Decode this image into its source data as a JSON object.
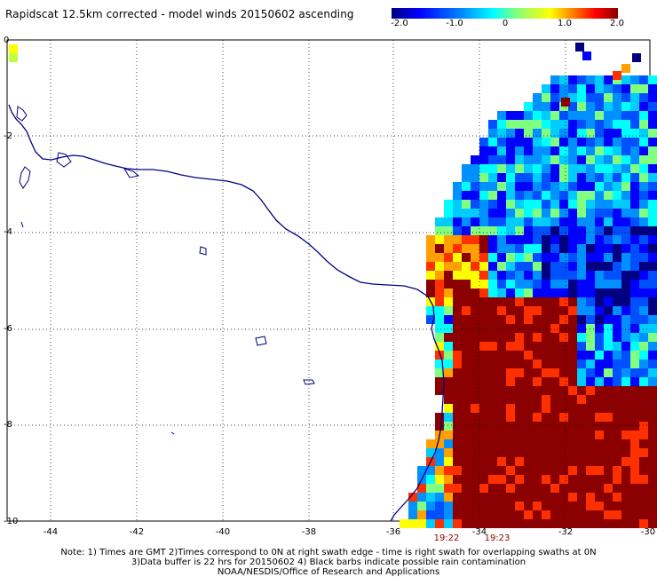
{
  "title": "Rapidscat 12.5km corrected - model winds 20150602 ascending",
  "colorbar": {
    "labels": [
      "-2.0",
      "-1.0",
      "0",
      "1.0",
      "2.0"
    ],
    "colors": [
      "#000080",
      "#0000ff",
      "#0080ff",
      "#00ffff",
      "#80ff80",
      "#ffff00",
      "#ff8000",
      "#ff0000",
      "#8b0000"
    ]
  },
  "axes": {
    "x_ticks": [
      "-44",
      "-42",
      "-40",
      "-38",
      "-36",
      "-34",
      "-32",
      "-30"
    ],
    "y_ticks": [
      "0",
      "-2",
      "-4",
      "-6",
      "-8",
      "-10"
    ]
  },
  "swath_times": [
    "19:22",
    "19:23"
  ],
  "notes": {
    "line1": "Note: 1) Times are GMT 2)Times correspond to 0N at right swath edge - time is right swath for overlapping swaths at 0N",
    "line2": "3)Data buffer is 22 hrs for 20150602 4) Black barbs indicate possible rain contamination",
    "line3": "NOAA/NESDIS/Office of Research and Applications"
  },
  "coastline_color": "#000080"
}
